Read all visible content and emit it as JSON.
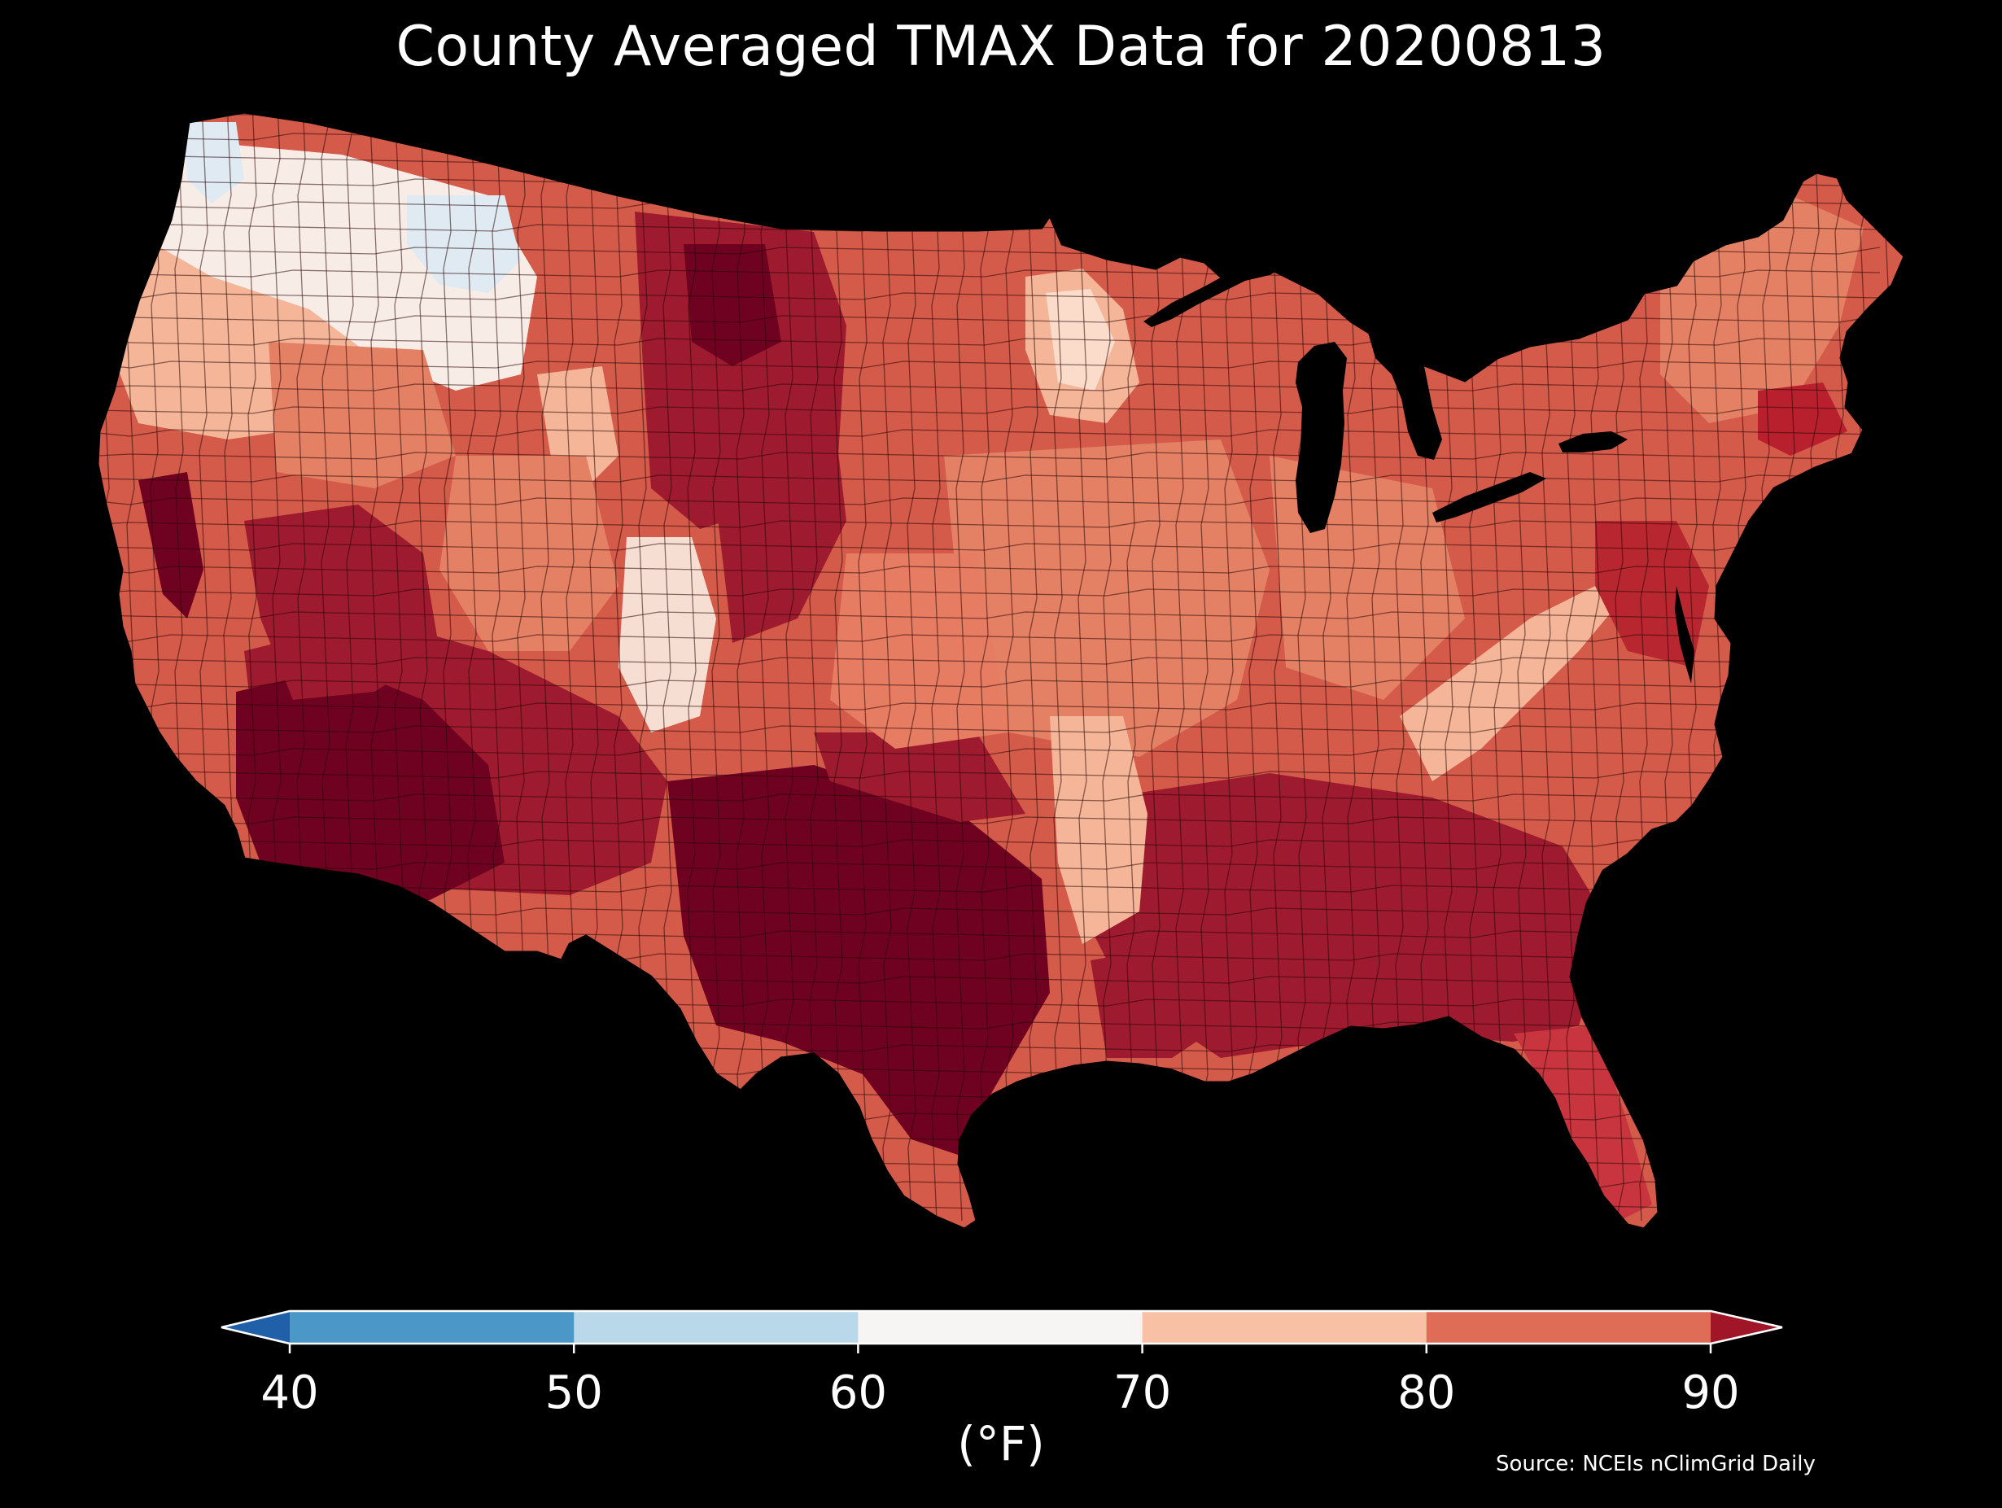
{
  "title": "County Averaged TMAX Data for 20200813",
  "source": "Source: NCEIs nClimGrid Daily",
  "colorbar": {
    "unit_label": "(°F)",
    "ticks": [
      "40",
      "50",
      "60",
      "70",
      "80",
      "90"
    ],
    "bins": [
      {
        "from": 40,
        "to": 50,
        "color": "#4b98c8"
      },
      {
        "from": 50,
        "to": 60,
        "color": "#b9d9ea"
      },
      {
        "from": 60,
        "to": 70,
        "color": "#f6f5f4"
      },
      {
        "from": 70,
        "to": 80,
        "color": "#f8c1a6"
      },
      {
        "from": 80,
        "to": 90,
        "color": "#de6c57"
      }
    ],
    "under_color": "#2060a8",
    "over_color": "#a01628"
  },
  "map": {
    "subject": "contiguous United States counties",
    "colors": {
      "base": "#d45a4a",
      "hot": "#9e1a2e",
      "hottest": "#6e0220",
      "warm": "#e48064",
      "mild": "#f4b598",
      "cool": "#f8ece6",
      "cold": "#dfeaf3",
      "border": "#2a0808"
    }
  }
}
